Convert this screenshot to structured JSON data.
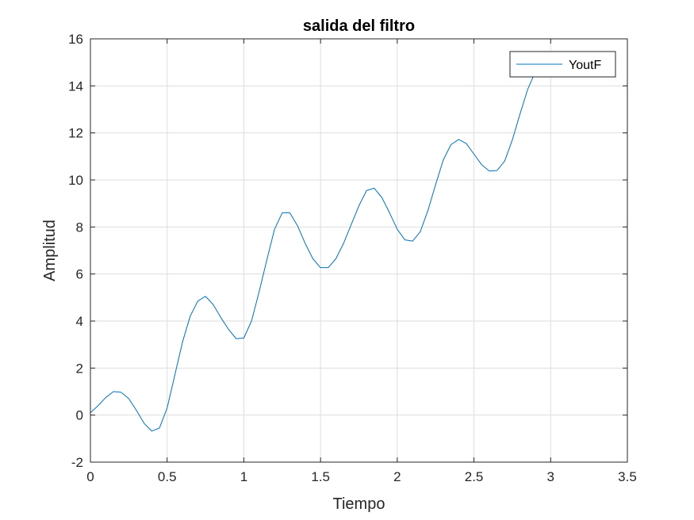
{
  "chart_data": {
    "type": "line",
    "title": "salida del filtro",
    "xlabel": "Tiempo",
    "ylabel": "Amplitud",
    "xlim": [
      0,
      3.5
    ],
    "ylim": [
      -2,
      16
    ],
    "xticks": [
      0,
      0.5,
      1,
      1.5,
      2,
      2.5,
      3,
      3.5
    ],
    "xtick_labels": [
      "0",
      "0.5",
      "1",
      "1.5",
      "2",
      "2.5",
      "3",
      "3.5"
    ],
    "yticks": [
      -2,
      0,
      2,
      4,
      6,
      8,
      10,
      12,
      14,
      16
    ],
    "ytick_labels": [
      "-2",
      "0",
      "2",
      "4",
      "6",
      "8",
      "10",
      "12",
      "14",
      "16"
    ],
    "grid": true,
    "legend_position": "top-right",
    "colors": {
      "series": "#0072BD",
      "axis": "#262626",
      "grid": "#dedede"
    },
    "series": [
      {
        "name": "YoutF",
        "x": [
          0,
          0.05,
          0.1,
          0.15,
          0.2,
          0.25,
          0.3,
          0.35,
          0.4,
          0.45,
          0.5,
          0.55,
          0.6,
          0.65,
          0.7,
          0.75,
          0.8,
          0.85,
          0.9,
          0.95,
          1.0,
          1.05,
          1.1,
          1.15,
          1.2,
          1.25,
          1.3,
          1.35,
          1.4,
          1.45,
          1.5,
          1.55,
          1.6,
          1.65,
          1.7,
          1.75,
          1.8,
          1.85,
          1.9,
          1.95,
          2.0,
          2.05,
          2.1,
          2.15,
          2.2,
          2.25,
          2.3,
          2.35,
          2.4,
          2.45,
          2.5,
          2.55,
          2.6,
          2.65,
          2.7,
          2.75,
          2.8,
          2.85,
          2.9
        ],
        "values": [
          0.1,
          0.4,
          0.75,
          1.0,
          0.97,
          0.7,
          0.2,
          -0.35,
          -0.68,
          -0.55,
          0.3,
          1.7,
          3.1,
          4.2,
          4.85,
          5.05,
          4.7,
          4.15,
          3.65,
          3.25,
          3.28,
          4.0,
          5.25,
          6.6,
          7.9,
          8.6,
          8.6,
          8.05,
          7.3,
          6.65,
          6.27,
          6.27,
          6.65,
          7.3,
          8.1,
          8.9,
          9.55,
          9.65,
          9.25,
          8.6,
          7.9,
          7.45,
          7.4,
          7.8,
          8.7,
          9.8,
          10.85,
          11.5,
          11.72,
          11.55,
          11.1,
          10.65,
          10.38,
          10.4,
          10.8,
          11.7,
          12.8,
          13.85,
          14.6
        ]
      }
    ]
  }
}
